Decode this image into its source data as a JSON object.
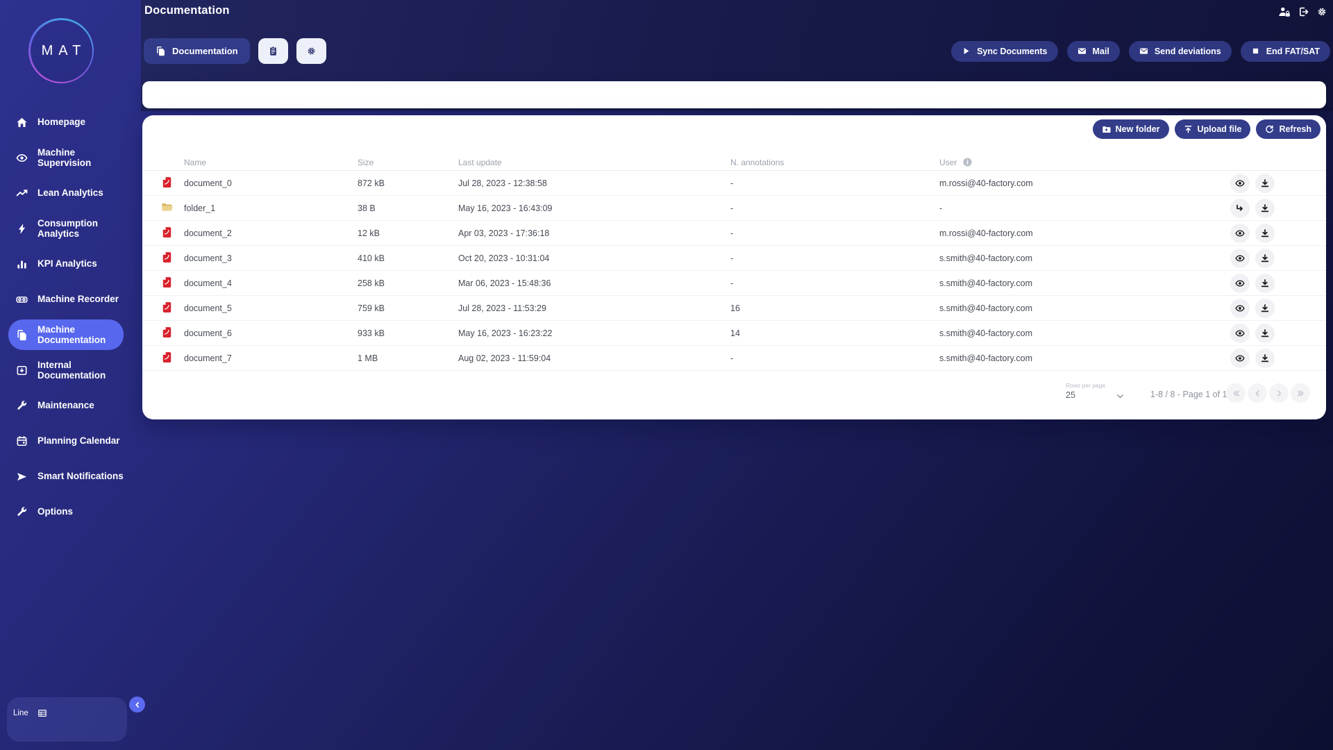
{
  "page": {
    "title": "Documentation"
  },
  "logo": {
    "text": "MAT"
  },
  "topbar": {
    "icons": [
      {
        "name": "user-lock-icon"
      },
      {
        "name": "logout-icon"
      },
      {
        "name": "gear-icon"
      }
    ]
  },
  "toolbar": {
    "tab": {
      "label": "Documentation",
      "icon": "documents-icon"
    },
    "icon_buttons": [
      {
        "name": "clipboard-icon"
      },
      {
        "name": "gear-icon"
      }
    ],
    "actions": [
      {
        "label": "Sync Documents",
        "icon": "play-icon"
      },
      {
        "label": "Mail",
        "icon": "mail-icon"
      },
      {
        "label": "Send deviations",
        "icon": "mail-icon"
      },
      {
        "label": "End FAT/SAT",
        "icon": "stop-icon"
      }
    ]
  },
  "search": {
    "value": "",
    "placeholder": ""
  },
  "content": {
    "buttons": [
      {
        "label": "New folder",
        "icon": "new-folder-icon"
      },
      {
        "label": "Upload file",
        "icon": "upload-icon"
      },
      {
        "label": "Refresh",
        "icon": "refresh-icon"
      }
    ],
    "table": {
      "columns": [
        {
          "label": "Name"
        },
        {
          "label": "Size"
        },
        {
          "label": "Last update"
        },
        {
          "label": "N. annotations"
        },
        {
          "label": "User",
          "info_icon": "info-icon"
        }
      ],
      "rows": [
        {
          "type": "pdf",
          "name": "document_0",
          "size": "872 kB",
          "last_update": "Jul 28, 2023 - 12:38:58",
          "annotations": "-",
          "user": "m.rossi@40-factory.com"
        },
        {
          "type": "folder",
          "name": "folder_1",
          "size": "38 B",
          "last_update": "May 16, 2023 - 16:43:09",
          "annotations": "-",
          "user": "-"
        },
        {
          "type": "pdf",
          "name": "document_2",
          "size": "12 kB",
          "last_update": "Apr 03, 2023 - 17:36:18",
          "annotations": "-",
          "user": "m.rossi@40-factory.com"
        },
        {
          "type": "pdf",
          "name": "document_3",
          "size": "410 kB",
          "last_update": "Oct 20, 2023 - 10:31:04",
          "annotations": "-",
          "user": "s.smith@40-factory.com"
        },
        {
          "type": "pdf",
          "name": "document_4",
          "size": "258 kB",
          "last_update": "Mar 06, 2023 - 15:48:36",
          "annotations": "-",
          "user": "s.smith@40-factory.com"
        },
        {
          "type": "pdf",
          "name": "document_5",
          "size": "759 kB",
          "last_update": "Jul 28, 2023 - 11:53:29",
          "annotations": "16",
          "user": "s.smith@40-factory.com"
        },
        {
          "type": "pdf",
          "name": "document_6",
          "size": "933 kB",
          "last_update": "May 16, 2023 - 16:23:22",
          "annotations": "14",
          "user": "s.smith@40-factory.com"
        },
        {
          "type": "pdf",
          "name": "document_7",
          "size": "1 MB",
          "last_update": "Aug 02, 2023 - 11:59:04",
          "annotations": "-",
          "user": "s.smith@40-factory.com"
        }
      ]
    },
    "pagination": {
      "rows_per_page_label": "Rows per page",
      "rows_per_page_value": "25",
      "range_label": "1-8 / 8 - Page 1 of 1",
      "controls": [
        {
          "name": "first-page-button",
          "icon": "chevrons-left-icon"
        },
        {
          "name": "prev-page-button",
          "icon": "chevron-left-icon"
        },
        {
          "name": "next-page-button",
          "icon": "chevron-right-icon"
        },
        {
          "name": "last-page-button",
          "icon": "chevrons-right-icon"
        }
      ]
    }
  },
  "sidebar": {
    "items": [
      {
        "label": "Homepage",
        "icon": "home-icon",
        "active": false
      },
      {
        "label": "Machine Supervision",
        "icon": "eye-icon",
        "active": false
      },
      {
        "label": "Lean Analytics",
        "icon": "line-chart-icon",
        "active": false
      },
      {
        "label": "Consumption Analytics",
        "icon": "bolt-icon",
        "active": false
      },
      {
        "label": "KPI Analytics",
        "icon": "bar-chart-icon",
        "active": false
      },
      {
        "label": "Machine Recorder",
        "icon": "recorder-icon",
        "active": false
      },
      {
        "label": "Machine Documentation",
        "icon": "documents-icon",
        "active": true
      },
      {
        "label": "Internal Documentation",
        "icon": "archive-icon",
        "active": false
      },
      {
        "label": "Maintenance",
        "icon": "wrench-icon",
        "active": false
      },
      {
        "label": "Planning Calendar",
        "icon": "calendar-icon",
        "active": false
      },
      {
        "label": "Smart Notifications",
        "icon": "send-icon",
        "active": false
      },
      {
        "label": "Options",
        "icon": "wrench-icon",
        "active": false
      }
    ]
  },
  "line_widget": {
    "label": "Line",
    "icon": "list-icon",
    "collapse_icon": "chevron-left-icon"
  },
  "colors": {
    "accent": "#5767ee",
    "button_indigo": "#333d8a",
    "pdf_red": "#d8232e",
    "folder_tan": "#ecd291"
  }
}
